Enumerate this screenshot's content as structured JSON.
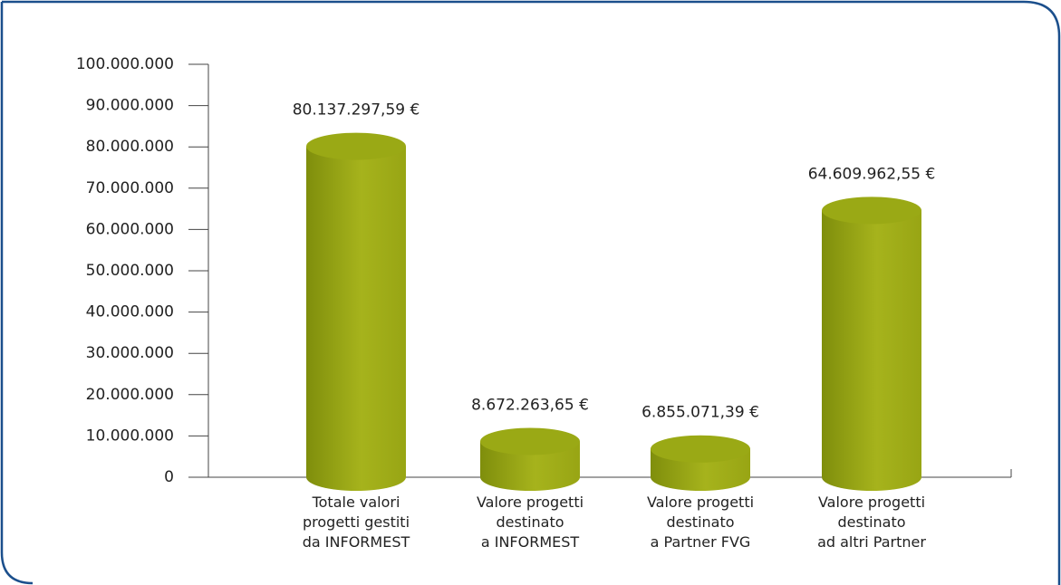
{
  "chart_data": {
    "type": "bar",
    "categories": [
      "Totale valori\nprogetti gestiti\nda INFORMEST",
      "Valore progetti\ndestinato\na INFORMEST",
      "Valore progetti\ndestinato\na Partner FVG",
      "Valore progetti\ndestinato\nad altri Partner"
    ],
    "values": [
      80137297.59,
      8672263.65,
      6855071.39,
      64609962.55
    ],
    "value_labels": [
      "80.137.297,59 €",
      "8.672.263,65 €",
      "6.855.071,39 €",
      "64.609.962,55 €"
    ],
    "color": "#9aa915",
    "ylim": [
      0,
      100000000
    ],
    "yticks": [
      {
        "value": 0,
        "label": "0"
      },
      {
        "value": 10000000,
        "label": "10.000.000"
      },
      {
        "value": 20000000,
        "label": "20.000.000"
      },
      {
        "value": 30000000,
        "label": "30.000.000"
      },
      {
        "value": 40000000,
        "label": "40.000.000"
      },
      {
        "value": 50000000,
        "label": "50.000.000"
      },
      {
        "value": 60000000,
        "label": "60.000.000"
      },
      {
        "value": 70000000,
        "label": "70.000.000"
      },
      {
        "value": 80000000,
        "label": "80.000.000"
      },
      {
        "value": 90000000,
        "label": "90.000.000"
      },
      {
        "value": 100000000,
        "label": "100.000.000"
      }
    ]
  }
}
